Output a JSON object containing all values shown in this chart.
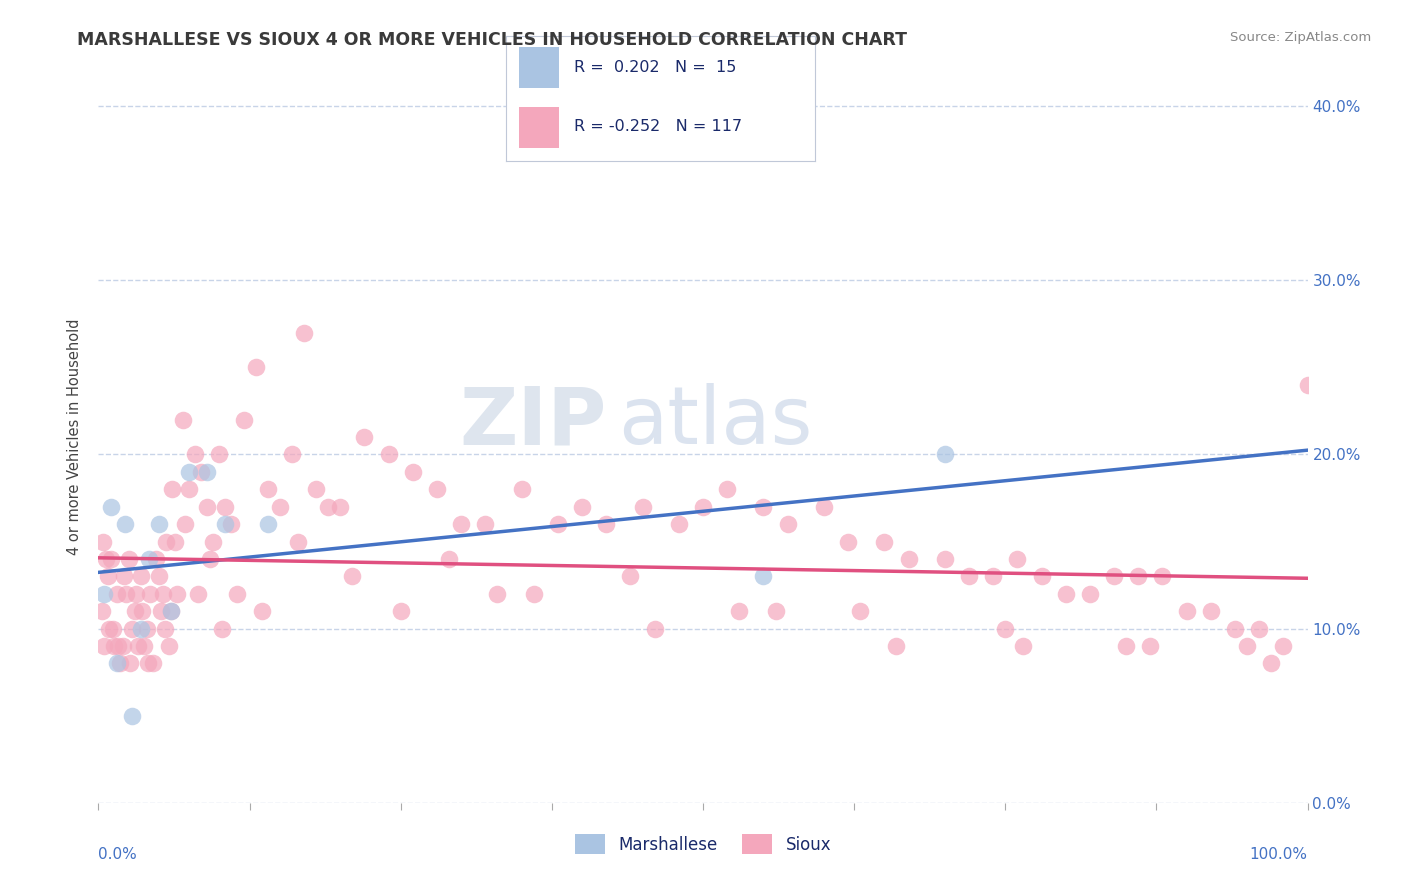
{
  "title": "MARSHALLESE VS SIOUX 4 OR MORE VEHICLES IN HOUSEHOLD CORRELATION CHART",
  "source": "Source: ZipAtlas.com",
  "ylabel": "4 or more Vehicles in Household",
  "xlim": [
    0,
    100
  ],
  "ylim": [
    0,
    42
  ],
  "yticks": [
    0,
    10,
    20,
    30,
    40
  ],
  "yticklabels": [
    "0.0%",
    "10.0%",
    "20.0%",
    "30.0%",
    "40.0%"
  ],
  "marshallese_color": "#aac4e2",
  "sioux_color": "#f4a7bc",
  "marshallese_line_color": "#4472c4",
  "sioux_line_color": "#e05080",
  "R_marshallese": 0.202,
  "N_marshallese": 15,
  "R_sioux": -0.252,
  "N_sioux": 117,
  "background_color": "#ffffff",
  "grid_color": "#c8d4e8",
  "watermark_zip": "ZIP",
  "watermark_atlas": "atlas",
  "title_color": "#3a3a3a",
  "axis_label_color": "#4472c4",
  "marshallese_x": [
    0.5,
    1.0,
    1.5,
    2.2,
    2.8,
    3.5,
    4.2,
    5.0,
    6.0,
    7.5,
    9.0,
    10.5,
    14.0,
    55.0,
    70.0
  ],
  "marshallese_y": [
    12,
    17,
    8,
    16,
    5,
    10,
    14,
    16,
    11,
    19,
    19,
    16,
    16,
    13,
    20
  ],
  "sioux_x": [
    0.3,
    0.5,
    0.8,
    1.0,
    1.2,
    1.5,
    1.8,
    2.0,
    2.3,
    2.5,
    2.8,
    3.0,
    3.3,
    3.5,
    3.8,
    4.0,
    4.3,
    4.5,
    4.8,
    5.0,
    5.3,
    5.5,
    5.8,
    6.0,
    6.3,
    6.5,
    7.0,
    7.5,
    8.0,
    8.5,
    9.0,
    9.5,
    10.0,
    10.5,
    11.0,
    12.0,
    13.0,
    14.0,
    15.0,
    16.0,
    17.0,
    18.0,
    19.0,
    20.0,
    22.0,
    24.0,
    26.0,
    28.0,
    30.0,
    32.0,
    35.0,
    38.0,
    40.0,
    42.0,
    45.0,
    48.0,
    50.0,
    52.0,
    55.0,
    57.0,
    60.0,
    62.0,
    65.0,
    67.0,
    70.0,
    72.0,
    74.0,
    76.0,
    78.0,
    80.0,
    82.0,
    84.0,
    86.0,
    88.0,
    90.0,
    92.0,
    94.0,
    96.0,
    98.0,
    100.0,
    0.4,
    0.6,
    0.9,
    1.3,
    1.6,
    2.1,
    2.6,
    3.1,
    3.6,
    4.1,
    5.2,
    6.1,
    7.2,
    8.2,
    9.2,
    10.2,
    11.5,
    13.5,
    16.5,
    21.0,
    25.0,
    33.0,
    44.0,
    53.0,
    63.0,
    75.0,
    85.0,
    95.0,
    29.0,
    36.0,
    46.0,
    56.0,
    66.0,
    76.5,
    87.0,
    97.0,
    5.6
  ],
  "sioux_y": [
    11,
    9,
    13,
    14,
    10,
    12,
    8,
    9,
    12,
    14,
    10,
    11,
    9,
    13,
    9,
    10,
    12,
    8,
    14,
    13,
    12,
    10,
    9,
    11,
    15,
    12,
    22,
    18,
    20,
    19,
    17,
    15,
    20,
    17,
    16,
    22,
    25,
    18,
    17,
    20,
    27,
    18,
    17,
    17,
    21,
    20,
    19,
    18,
    16,
    16,
    18,
    16,
    17,
    16,
    17,
    16,
    17,
    18,
    17,
    16,
    17,
    15,
    15,
    14,
    14,
    13,
    13,
    14,
    13,
    12,
    12,
    13,
    13,
    13,
    11,
    11,
    10,
    10,
    9,
    24,
    15,
    14,
    10,
    9,
    9,
    13,
    8,
    12,
    11,
    8,
    11,
    18,
    16,
    12,
    14,
    10,
    12,
    11,
    15,
    13,
    11,
    12,
    13,
    11,
    11,
    10,
    9,
    9,
    14,
    12,
    10,
    11,
    9,
    9,
    9,
    8,
    15
  ]
}
